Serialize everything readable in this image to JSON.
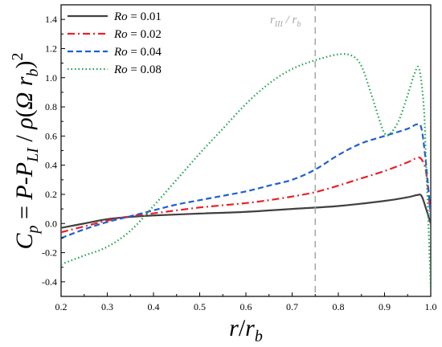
{
  "chart_data": {
    "type": "line",
    "title": "",
    "xlabel": "r/r_b",
    "ylabel": "C_p = P-P_LI / ρ(Ω r_b)^2",
    "xlim": [
      0.2,
      1.0
    ],
    "ylim": [
      -0.5,
      1.5
    ],
    "x_ticks": [
      0.2,
      0.3,
      0.4,
      0.5,
      0.6,
      0.7,
      0.8,
      0.9,
      1.0
    ],
    "y_ticks": [
      -0.4,
      -0.2,
      0.0,
      0.2,
      0.4,
      0.6,
      0.8,
      1.0,
      1.2,
      1.4
    ],
    "x_tick_labels": [
      "0.2",
      "0.3",
      "0.4",
      "0.5",
      "0.6",
      "0.7",
      "0.8",
      "0.9",
      "1.0"
    ],
    "y_tick_labels": [
      "-0.4",
      "-0.2",
      "0.0",
      "0.2",
      "0.4",
      "0.6",
      "0.8",
      "1.0",
      "1.2",
      "1.4"
    ],
    "legend_position": "top-left",
    "grid": false,
    "annotation": {
      "label": "r_III / r_b",
      "x": 0.75
    },
    "series": [
      {
        "name": "Ro = 0.01",
        "legend_var": "Ro",
        "legend_val": " = 0.01",
        "color": "#404040",
        "dash": "solid",
        "points": [
          [
            0.2,
            -0.03
          ],
          [
            0.25,
            0.0
          ],
          [
            0.3,
            0.03
          ],
          [
            0.35,
            0.045
          ],
          [
            0.4,
            0.055
          ],
          [
            0.5,
            0.068
          ],
          [
            0.6,
            0.08
          ],
          [
            0.7,
            0.1
          ],
          [
            0.8,
            0.12
          ],
          [
            0.9,
            0.155
          ],
          [
            0.95,
            0.18
          ],
          [
            0.97,
            0.195
          ],
          [
            0.98,
            0.19
          ],
          [
            0.99,
            0.1
          ],
          [
            1.0,
            0.0
          ]
        ]
      },
      {
        "name": "Ro = 0.02",
        "legend_var": "Ro",
        "legend_val": " = 0.02",
        "color": "#e8202a",
        "dash": "dashdot",
        "points": [
          [
            0.2,
            -0.06
          ],
          [
            0.25,
            -0.02
          ],
          [
            0.3,
            0.02
          ],
          [
            0.35,
            0.05
          ],
          [
            0.4,
            0.07
          ],
          [
            0.45,
            0.09
          ],
          [
            0.5,
            0.11
          ],
          [
            0.55,
            0.125
          ],
          [
            0.6,
            0.14
          ],
          [
            0.65,
            0.16
          ],
          [
            0.7,
            0.185
          ],
          [
            0.75,
            0.215
          ],
          [
            0.8,
            0.26
          ],
          [
            0.85,
            0.31
          ],
          [
            0.9,
            0.36
          ],
          [
            0.95,
            0.42
          ],
          [
            0.97,
            0.45
          ],
          [
            0.98,
            0.44
          ],
          [
            0.99,
            0.35
          ],
          [
            1.0,
            0.05
          ]
        ]
      },
      {
        "name": "Ro = 0.04",
        "legend_var": "Ro",
        "legend_val": " = 0.04",
        "color": "#1f5fd1",
        "dash": "dash",
        "points": [
          [
            0.2,
            -0.1
          ],
          [
            0.25,
            -0.04
          ],
          [
            0.3,
            0.01
          ],
          [
            0.35,
            0.05
          ],
          [
            0.4,
            0.09
          ],
          [
            0.45,
            0.13
          ],
          [
            0.5,
            0.16
          ],
          [
            0.55,
            0.19
          ],
          [
            0.6,
            0.22
          ],
          [
            0.65,
            0.26
          ],
          [
            0.7,
            0.3
          ],
          [
            0.75,
            0.37
          ],
          [
            0.8,
            0.47
          ],
          [
            0.85,
            0.55
          ],
          [
            0.9,
            0.6
          ],
          [
            0.95,
            0.65
          ],
          [
            0.97,
            0.68
          ],
          [
            0.98,
            0.65
          ],
          [
            0.99,
            0.4
          ],
          [
            1.0,
            0.05
          ]
        ]
      },
      {
        "name": "Ro = 0.08",
        "legend_var": "Ro",
        "legend_val": " = 0.08",
        "color": "#1aa34a",
        "dash": "dot",
        "points": [
          [
            0.2,
            -0.28
          ],
          [
            0.25,
            -0.22
          ],
          [
            0.3,
            -0.16
          ],
          [
            0.35,
            -0.05
          ],
          [
            0.4,
            0.12
          ],
          [
            0.45,
            0.3
          ],
          [
            0.5,
            0.48
          ],
          [
            0.55,
            0.65
          ],
          [
            0.6,
            0.82
          ],
          [
            0.65,
            0.96
          ],
          [
            0.7,
            1.06
          ],
          [
            0.75,
            1.12
          ],
          [
            0.8,
            1.16
          ],
          [
            0.83,
            1.15
          ],
          [
            0.85,
            1.08
          ],
          [
            0.87,
            0.9
          ],
          [
            0.89,
            0.7
          ],
          [
            0.9,
            0.62
          ],
          [
            0.91,
            0.61
          ],
          [
            0.93,
            0.7
          ],
          [
            0.95,
            0.88
          ],
          [
            0.965,
            1.03
          ],
          [
            0.975,
            1.06
          ],
          [
            0.985,
            0.8
          ],
          [
            0.99,
            0.4
          ],
          [
            0.995,
            0.0
          ],
          [
            1.0,
            -0.45
          ]
        ]
      }
    ]
  }
}
